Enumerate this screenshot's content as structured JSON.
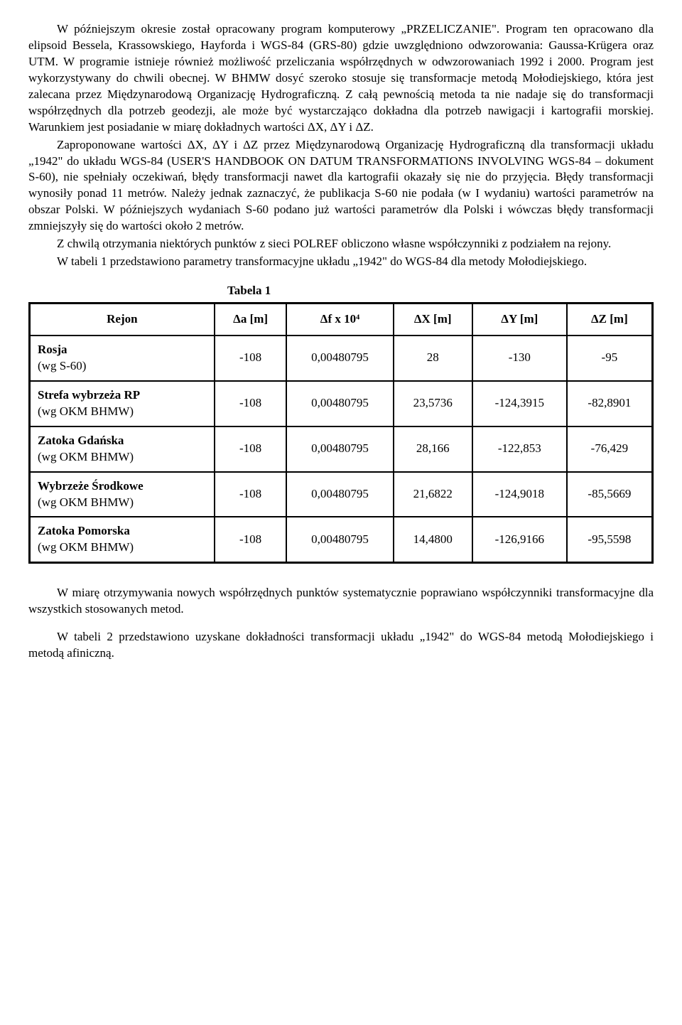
{
  "paragraphs": {
    "p1": "W późniejszym okresie został opracowany program komputerowy „PRZELICZANIE\". Program ten opracowano dla elipsoid Bessela, Krassowskiego, Hayforda i WGS-84 (GRS-80) gdzie uwzględniono odwzorowania: Gaussa-Krügera oraz UTM. W programie istnieje również możliwość przeliczania współrzędnych w odwzorowaniach 1992 i 2000. Program jest wykorzystywany do chwili obecnej. W BHMW dosyć szeroko stosuje się transformacje metodą Mołodiejskiego, która jest zalecana przez Międzynarodową Organizację Hydrograficzną. Z całą pewnością metoda ta nie nadaje się do transformacji współrzędnych dla potrzeb geodezji, ale może być wystarczająco dokładna dla potrzeb nawigacji i kartografii morskiej. Warunkiem jest posiadanie w miarę dokładnych wartości ΔX, ΔY i ΔZ.",
    "p2": "Zaproponowane wartości ΔX, ΔY i ΔZ przez Międzynarodową Organizację Hydrograficzną dla transformacji układu „1942\" do układu WGS-84 (USER'S HANDBOOK ON DATUM TRANSFORMATIONS INVOLVING WGS-84 – dokument S-60), nie spełniały oczekiwań, błędy transformacji nawet dla kartografii okazały się nie do przyjęcia. Błędy transformacji wynosiły ponad 11 metrów. Należy jednak zaznaczyć, że publikacja S-60 nie podała (w I wydaniu) wartości parametrów na obszar Polski. W późniejszych wydaniach S-60 podano już wartości parametrów dla Polski i wówczas błędy transformacji zmniejszyły się do wartości około 2 metrów.",
    "p3": "Z chwilą otrzymania niektórych punktów z sieci POLREF obliczono własne współczynniki z podziałem na rejony.",
    "p4": "W tabeli 1 przedstawiono parametry transformacyjne układu „1942\" do WGS-84 dla metody Mołodiejskiego.",
    "p5": "W miarę otrzymywania nowych współrzędnych punktów systematycznie poprawiano współczynniki transformacyjne dla wszystkich stosowanych metod.",
    "p6": "W tabeli 2 przedstawiono uzyskane dokładności transformacji układu „1942\" do WGS-84 metodą Mołodiejskiego i metodą afiniczną."
  },
  "table": {
    "caption": "Tabela 1",
    "columns": [
      "Rejon",
      "Δa [m]",
      "Δf x 10⁴",
      "ΔX [m]",
      "ΔY [m]",
      "ΔZ [m]"
    ],
    "rows": [
      {
        "label": "Rosja",
        "sub": "(wg S-60)",
        "da": "-108",
        "df": "0,00480795",
        "dx": "28",
        "dy": "-130",
        "dz": "-95"
      },
      {
        "label": "Strefa wybrzeża RP",
        "sub": "(wg OKM BHMW)",
        "da": "-108",
        "df": "0,00480795",
        "dx": "23,5736",
        "dy": "-124,3915",
        "dz": "-82,8901"
      },
      {
        "label": "Zatoka Gdańska",
        "sub": "(wg OKM BHMW)",
        "da": "-108",
        "df": "0,00480795",
        "dx": "28,166",
        "dy": "-122,853",
        "dz": "-76,429"
      },
      {
        "label": "Wybrzeże Środkowe",
        "sub": "(wg OKM BHMW)",
        "da": "-108",
        "df": "0,00480795",
        "dx": "21,6822",
        "dy": "-124,9018",
        "dz": "-85,5669"
      },
      {
        "label": "Zatoka Pomorska",
        "sub": "(wg OKM BHMW)",
        "da": "-108",
        "df": "0,00480795",
        "dx": "14,4800",
        "dy": "-126,9166",
        "dz": "-95,5598"
      }
    ]
  }
}
